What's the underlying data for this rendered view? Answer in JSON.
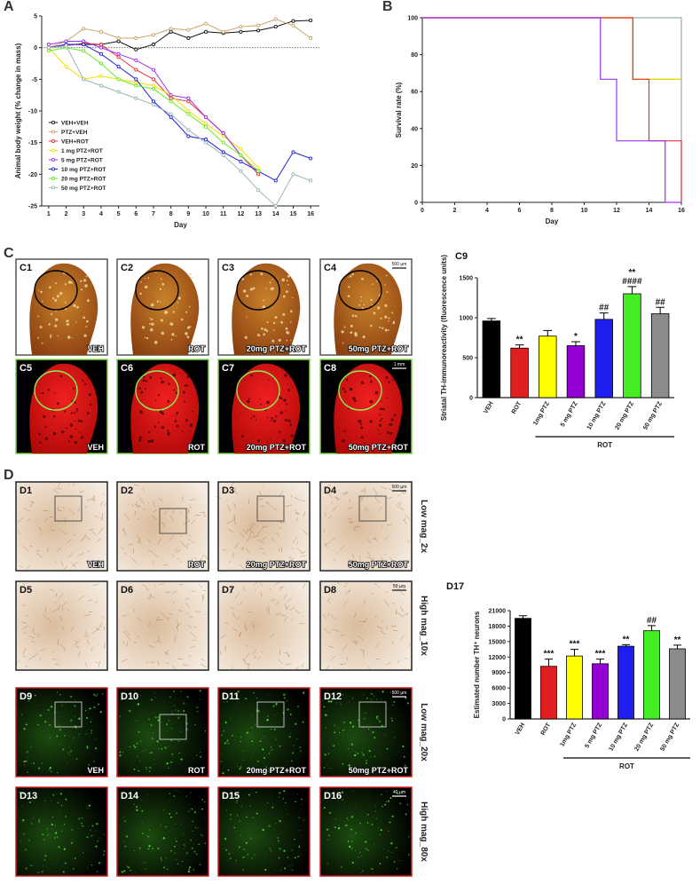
{
  "chart_data": [
    {
      "type": "line",
      "title": "A",
      "xlabel": "Day",
      "ylabel": "Animal body weight (% change in mass)",
      "x": [
        1,
        2,
        3,
        4,
        5,
        6,
        7,
        8,
        9,
        10,
        11,
        12,
        13,
        14,
        15,
        16
      ],
      "xlim": [
        0.6,
        16.5
      ],
      "xticks": [
        1,
        2,
        3,
        4,
        5,
        6,
        7,
        8,
        9,
        10,
        11,
        12,
        13,
        14,
        15,
        16
      ],
      "ylim": [
        -25,
        5
      ],
      "yticks": [
        -25,
        -20,
        -15,
        -10,
        -5,
        0,
        5
      ],
      "hline": 0,
      "legend": "lower left",
      "markers": true,
      "series": [
        {
          "name": "VEH+VEH",
          "color": "#111111",
          "values": [
            0,
            0.5,
            0.5,
            0.5,
            1,
            -0.3,
            0.5,
            2.5,
            1.5,
            2.5,
            2.3,
            2.5,
            2.7,
            3.3,
            4.2,
            4.3
          ]
        },
        {
          "name": "PTZ+VEH",
          "color": "#c9a66b",
          "values": [
            0,
            1,
            3,
            2.5,
            1.5,
            1.5,
            2,
            3,
            2.8,
            3.8,
            2.5,
            3.3,
            3.5,
            4.5,
            3.5,
            1.5
          ]
        },
        {
          "name": "VEH+ROT",
          "color": "#e8303a",
          "values": [
            0,
            0.3,
            0.7,
            0.5,
            -1.5,
            -3.5,
            -5,
            -8,
            -8.5,
            -11,
            -13.5,
            -17,
            -20,
            null,
            null,
            null
          ]
        },
        {
          "name": "1 mg PTZ+ROT",
          "color": "#f5e000",
          "values": [
            0,
            -3,
            -5,
            -4.5,
            -5,
            -5.5,
            -6,
            -7.5,
            -10,
            -12,
            -14,
            -16,
            -19,
            null,
            null,
            null
          ]
        },
        {
          "name": "5 mg PTZ+ROT",
          "color": "#a030f0",
          "values": [
            0.5,
            1,
            1,
            0,
            -1,
            -2,
            -3.5,
            -7.5,
            -8,
            -11,
            -13.5,
            -17,
            -19.5,
            null,
            null,
            null
          ]
        },
        {
          "name": "10 mg PTZ+ROT",
          "color": "#2020e0",
          "values": [
            0,
            0.5,
            0.5,
            -1,
            -3,
            -5,
            -8.5,
            -11,
            -14,
            -14.5,
            -16.5,
            -18,
            -19.5,
            -21,
            -16.5,
            -17.5
          ]
        },
        {
          "name": "20 mg PTZ+ROT",
          "color": "#66ee22",
          "values": [
            -0.5,
            0,
            -0.5,
            -2.5,
            -5,
            -6,
            -6.5,
            -8.5,
            -10.5,
            -12.5,
            -15,
            -17,
            -19.5,
            null,
            null,
            null
          ]
        },
        {
          "name": "50 mg PTZ+ROT",
          "color": "#9ab3b8",
          "values": [
            0,
            0.3,
            -5,
            -6,
            -7,
            -8,
            -9,
            -10.5,
            -13,
            -15,
            -17,
            -19.5,
            -22.5,
            -25,
            -20,
            -21
          ]
        }
      ]
    },
    {
      "type": "line",
      "title": "B",
      "xlabel": "Day",
      "ylabel": "Survival rate (%)",
      "xlim": [
        0,
        16
      ],
      "xticks": [
        0,
        2,
        4,
        6,
        8,
        10,
        12,
        14,
        16
      ],
      "ylim": [
        0,
        100
      ],
      "yticks": [
        0,
        20,
        40,
        60,
        80,
        100
      ],
      "markers": false,
      "series": [
        {
          "color": "#9aa9b0",
          "x": [
            0,
            16,
            16
          ],
          "values": [
            100,
            100,
            0
          ]
        },
        {
          "color": "#7cfc00",
          "x": [
            0,
            13,
            13,
            16
          ],
          "values": [
            100,
            100,
            66.7,
            66.7
          ]
        },
        {
          "color": "#f5d000",
          "x": [
            0,
            13,
            13,
            16
          ],
          "values": [
            100,
            100,
            66.7,
            66.7
          ]
        },
        {
          "color": "#e8303a",
          "x": [
            0,
            13,
            13,
            14,
            14,
            16,
            16
          ],
          "values": [
            100,
            100,
            66.7,
            66.7,
            33.3,
            33.3,
            0
          ]
        },
        {
          "color": "#a030f0",
          "x": [
            0,
            11,
            11,
            12,
            12,
            15,
            15,
            16
          ],
          "values": [
            100,
            100,
            66.7,
            66.7,
            33.3,
            33.3,
            0,
            0
          ]
        }
      ]
    },
    {
      "type": "bar",
      "title": "C9",
      "ylabel": "Striatal TH-immunoreactivity (fluorescence units)",
      "categories": [
        "VEH",
        "ROT",
        "1mg PTZ",
        "5 mg PTZ",
        "10 mg PTZ",
        "20 mg PTZ",
        "50 mg PTZ"
      ],
      "values": [
        960,
        620,
        770,
        650,
        980,
        1300,
        1050
      ],
      "errors": [
        30,
        40,
        70,
        50,
        80,
        90,
        80
      ],
      "colors": [
        "#000000",
        "#e02020",
        "#ffff00",
        "#9400d3",
        "#1e1ef0",
        "#44ee22",
        "#8c8c8c"
      ],
      "annotations": [
        [],
        [
          "**"
        ],
        [],
        [
          "*"
        ],
        [
          "##"
        ],
        [
          "**",
          "####"
        ],
        [
          "##"
        ]
      ],
      "group_label": "ROT",
      "ylim": [
        0,
        1500
      ],
      "yticks": [
        0,
        500,
        1000,
        1500
      ]
    },
    {
      "type": "bar",
      "title": "D17",
      "ylabel": "Estimated number TH⁺ neurons",
      "categories": [
        "VEH",
        "ROT",
        "1mg PTZ",
        "5 mg PTZ",
        "10 mg PTZ",
        "20 mg PTZ",
        "50 mg PTZ"
      ],
      "values": [
        19500,
        10200,
        12200,
        10700,
        14100,
        17100,
        13600
      ],
      "errors": [
        500,
        1400,
        1300,
        900,
        300,
        1000,
        700
      ],
      "colors": [
        "#000000",
        "#e02020",
        "#ffff00",
        "#9400d3",
        "#1e1ef0",
        "#44ee22",
        "#8c8c8c"
      ],
      "annotations": [
        [],
        [
          "***"
        ],
        [
          "***"
        ],
        [
          "***"
        ],
        [
          "**"
        ],
        [
          "##"
        ],
        [
          "**"
        ]
      ],
      "group_label": "ROT",
      "ylim": [
        0,
        21000
      ],
      "yticks": [
        0,
        3000,
        6000,
        9000,
        12000,
        15000,
        18000,
        21000
      ]
    }
  ],
  "panels": {
    "letters": [
      "C",
      "D"
    ],
    "images": [
      {
        "id": "C1",
        "caption": "VEH"
      },
      {
        "id": "C2",
        "caption": "ROT"
      },
      {
        "id": "C3",
        "caption": "20mg PTZ+ROT"
      },
      {
        "id": "C4",
        "caption": "50mg PTZ+ROT",
        "scale": "500 µm"
      },
      {
        "id": "C5",
        "caption": "VEH"
      },
      {
        "id": "C6",
        "caption": "ROT"
      },
      {
        "id": "C7",
        "caption": "20mg PTZ+ROT"
      },
      {
        "id": "C8",
        "caption": "50mg PTZ+ROT",
        "scale": "1 mm"
      },
      {
        "id": "D1",
        "caption": "VEH"
      },
      {
        "id": "D2",
        "caption": "ROT"
      },
      {
        "id": "D3",
        "caption": "20mg PTZ+ROT"
      },
      {
        "id": "D4",
        "caption": "50mg PTZ+ROT",
        "scale": "500 µm"
      },
      {
        "id": "D5"
      },
      {
        "id": "D6"
      },
      {
        "id": "D7"
      },
      {
        "id": "D8",
        "scale": "50 µm"
      },
      {
        "id": "D9",
        "caption": "VEH"
      },
      {
        "id": "D10",
        "caption": "ROT"
      },
      {
        "id": "D11",
        "caption": "20mg PTZ+ROT"
      },
      {
        "id": "D12",
        "caption": "50mg PTZ+ROT",
        "scale": "500 µm"
      },
      {
        "id": "D13"
      },
      {
        "id": "D14"
      },
      {
        "id": "D15"
      },
      {
        "id": "D16",
        "scale": "40 µm"
      }
    ],
    "row_labels": [
      "Low mag_2x",
      "High mag_10x",
      "Low mag_20x",
      "High mag_80x"
    ]
  }
}
